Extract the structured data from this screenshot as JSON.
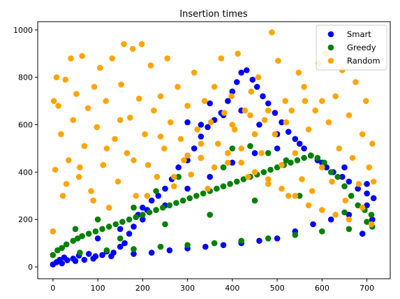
{
  "chart_data": {
    "type": "scatter",
    "title": "Insertion times",
    "xlabel": "",
    "ylabel": "",
    "xlim": [
      -34,
      752
    ],
    "ylim": [
      -50,
      1035
    ],
    "xticks": [
      0,
      100,
      200,
      300,
      400,
      500,
      600,
      700
    ],
    "yticks": [
      0,
      200,
      400,
      600,
      800,
      1000
    ],
    "grid": false,
    "legend_position": "top-right",
    "series": [
      {
        "name": "Smart",
        "color": "#0000ff",
        "points": [
          [
            0,
            10
          ],
          [
            8,
            20
          ],
          [
            15,
            30
          ],
          [
            25,
            40
          ],
          [
            32,
            28
          ],
          [
            45,
            35
          ],
          [
            58,
            48
          ],
          [
            70,
            30
          ],
          [
            80,
            55
          ],
          [
            95,
            45
          ],
          [
            110,
            50
          ],
          [
            120,
            65
          ],
          [
            135,
            60
          ],
          [
            150,
            85
          ],
          [
            160,
            100
          ],
          [
            170,
            140
          ],
          [
            180,
            170
          ],
          [
            190,
            220
          ],
          [
            200,
            250
          ],
          [
            210,
            240
          ],
          [
            220,
            280
          ],
          [
            235,
            300
          ],
          [
            250,
            330
          ],
          [
            265,
            370
          ],
          [
            280,
            420
          ],
          [
            300,
            450
          ],
          [
            315,
            500
          ],
          [
            330,
            550
          ],
          [
            345,
            590
          ],
          [
            360,
            620
          ],
          [
            375,
            650
          ],
          [
            390,
            700
          ],
          [
            400,
            740
          ],
          [
            410,
            780
          ],
          [
            420,
            820
          ],
          [
            432,
            830
          ],
          [
            445,
            790
          ],
          [
            455,
            760
          ],
          [
            468,
            720
          ],
          [
            480,
            690
          ],
          [
            495,
            650
          ],
          [
            510,
            610
          ],
          [
            525,
            570
          ],
          [
            540,
            540
          ],
          [
            560,
            500
          ],
          [
            575,
            470
          ],
          [
            590,
            450
          ],
          [
            610,
            420
          ],
          [
            625,
            400
          ],
          [
            645,
            380
          ],
          [
            660,
            360
          ],
          [
            680,
            330
          ],
          [
            700,
            310
          ],
          [
            715,
            290
          ],
          [
            20,
            15
          ],
          [
            50,
            25
          ],
          [
            90,
            35
          ],
          [
            130,
            45
          ],
          [
            180,
            55
          ],
          [
            220,
            60
          ],
          [
            260,
            70
          ],
          [
            300,
            78
          ],
          [
            340,
            85
          ],
          [
            380,
            92
          ],
          [
            420,
            100
          ],
          [
            460,
            110
          ],
          [
            500,
            120
          ],
          [
            540,
            150
          ],
          [
            580,
            180
          ],
          [
            620,
            200
          ],
          [
            660,
            220
          ],
          [
            700,
            260
          ],
          [
            712,
            200
          ],
          [
            690,
            140
          ],
          [
            100,
            120
          ],
          [
            150,
            160
          ],
          [
            200,
            200
          ],
          [
            250,
            260
          ],
          [
            300,
            330
          ],
          [
            350,
            380
          ],
          [
            400,
            440
          ],
          [
            450,
            480
          ],
          [
            500,
            500
          ],
          [
            550,
            520
          ],
          [
            600,
            440
          ],
          [
            650,
            420
          ],
          [
            700,
            350
          ],
          [
            350,
            690
          ],
          [
            380,
            640
          ],
          [
            420,
            660
          ],
          [
            460,
            600
          ],
          [
            300,
            610
          ],
          [
            330,
            600
          ],
          [
            500,
            560
          ]
        ]
      },
      {
        "name": "Greedy",
        "color": "#008000",
        "points": [
          [
            0,
            50
          ],
          [
            10,
            70
          ],
          [
            20,
            80
          ],
          [
            30,
            95
          ],
          [
            45,
            110
          ],
          [
            55,
            120
          ],
          [
            65,
            130
          ],
          [
            80,
            140
          ],
          [
            95,
            150
          ],
          [
            110,
            160
          ],
          [
            125,
            170
          ],
          [
            140,
            180
          ],
          [
            155,
            190
          ],
          [
            170,
            200
          ],
          [
            185,
            210
          ],
          [
            200,
            220
          ],
          [
            215,
            230
          ],
          [
            230,
            240
          ],
          [
            245,
            250
          ],
          [
            260,
            260
          ],
          [
            275,
            270
          ],
          [
            290,
            280
          ],
          [
            305,
            290
          ],
          [
            320,
            300
          ],
          [
            335,
            310
          ],
          [
            350,
            320
          ],
          [
            365,
            330
          ],
          [
            380,
            340
          ],
          [
            395,
            350
          ],
          [
            410,
            360
          ],
          [
            425,
            370
          ],
          [
            440,
            380
          ],
          [
            455,
            390
          ],
          [
            470,
            400
          ],
          [
            485,
            410
          ],
          [
            500,
            420
          ],
          [
            515,
            430
          ],
          [
            530,
            440
          ],
          [
            545,
            450
          ],
          [
            560,
            460
          ],
          [
            575,
            470
          ],
          [
            590,
            460
          ],
          [
            605,
            440
          ],
          [
            620,
            400
          ],
          [
            635,
            380
          ],
          [
            650,
            340
          ],
          [
            665,
            300
          ],
          [
            680,
            260
          ],
          [
            695,
            240
          ],
          [
            710,
            220
          ],
          [
            60,
            60
          ],
          [
            120,
            70
          ],
          [
            180,
            75
          ],
          [
            240,
            85
          ],
          [
            300,
            92
          ],
          [
            360,
            100
          ],
          [
            420,
            110
          ],
          [
            480,
            120
          ],
          [
            540,
            135
          ],
          [
            600,
            150
          ],
          [
            660,
            160
          ],
          [
            712,
            170
          ],
          [
            150,
            120
          ],
          [
            250,
            180
          ],
          [
            350,
            220
          ],
          [
            450,
            280
          ],
          [
            550,
            300
          ],
          [
            650,
            230
          ],
          [
            700,
            190
          ],
          [
            400,
            500
          ],
          [
            440,
            510
          ],
          [
            480,
            480
          ],
          [
            520,
            450
          ],
          [
            330,
            460
          ],
          [
            380,
            420
          ],
          [
            280,
            380
          ],
          [
            230,
            320
          ],
          [
            180,
            250
          ],
          [
            100,
            200
          ],
          [
            50,
            160
          ]
        ]
      },
      {
        "name": "Random",
        "color": "#ffa500",
        "points": [
          [
            0,
            150
          ],
          [
            2,
            700
          ],
          [
            5,
            410
          ],
          [
            8,
            800
          ],
          [
            12,
            680
          ],
          [
            18,
            560
          ],
          [
            22,
            300
          ],
          [
            28,
            790
          ],
          [
            35,
            450
          ],
          [
            40,
            880
          ],
          [
            45,
            620
          ],
          [
            52,
            730
          ],
          [
            58,
            380
          ],
          [
            65,
            890
          ],
          [
            70,
            510
          ],
          [
            78,
            670
          ],
          [
            85,
            320
          ],
          [
            92,
            760
          ],
          [
            98,
            590
          ],
          [
            105,
            840
          ],
          [
            112,
            430
          ],
          [
            118,
            700
          ],
          [
            125,
            250
          ],
          [
            132,
            880
          ],
          [
            138,
            540
          ],
          [
            145,
            360
          ],
          [
            152,
            770
          ],
          [
            158,
            940
          ],
          [
            165,
            480
          ],
          [
            172,
            630
          ],
          [
            178,
            920
          ],
          [
            185,
            300
          ],
          [
            192,
            710
          ],
          [
            198,
            940
          ],
          [
            205,
            560
          ],
          [
            212,
            430
          ],
          [
            218,
            850
          ],
          [
            225,
            660
          ],
          [
            232,
            380
          ],
          [
            240,
            720
          ],
          [
            248,
            500
          ],
          [
            255,
            880
          ],
          [
            262,
            610
          ],
          [
            270,
            340
          ],
          [
            278,
            760
          ],
          [
            285,
            540
          ],
          [
            292,
            450
          ],
          [
            300,
            680
          ],
          [
            308,
            390
          ],
          [
            315,
            820
          ],
          [
            322,
            580
          ],
          [
            330,
            460
          ],
          [
            338,
            700
          ],
          [
            345,
            330
          ],
          [
            352,
            610
          ],
          [
            360,
            760
          ],
          [
            368,
            520
          ],
          [
            375,
            880
          ],
          [
            382,
            650
          ],
          [
            390,
            440
          ],
          [
            398,
            720
          ],
          [
            405,
            580
          ],
          [
            412,
            900
          ],
          [
            420,
            500
          ],
          [
            428,
            660
          ],
          [
            435,
            380
          ],
          [
            442,
            740
          ],
          [
            450,
            560
          ],
          [
            458,
            800
          ],
          [
            465,
            480
          ],
          [
            472,
            620
          ],
          [
            480,
            350
          ],
          [
            488,
            990
          ],
          [
            495,
            560
          ],
          [
            502,
            870
          ],
          [
            510,
            430
          ],
          [
            518,
            700
          ],
          [
            525,
            300
          ],
          [
            532,
            660
          ],
          [
            540,
            480
          ],
          [
            548,
            820
          ],
          [
            555,
            370
          ],
          [
            562,
            700
          ],
          [
            570,
            580
          ],
          [
            578,
            320
          ],
          [
            585,
            660
          ],
          [
            592,
            860
          ],
          [
            600,
            420
          ],
          [
            608,
            900
          ],
          [
            615,
            610
          ],
          [
            622,
            360
          ],
          [
            630,
            720
          ],
          [
            638,
            500
          ],
          [
            645,
            830
          ],
          [
            652,
            280
          ],
          [
            660,
            640
          ],
          [
            668,
            460
          ],
          [
            675,
            780
          ],
          [
            682,
            350
          ],
          [
            690,
            560
          ],
          [
            698,
            700
          ],
          [
            705,
            420
          ],
          [
            712,
            520
          ],
          [
            715,
            360
          ],
          [
            30,
            350
          ],
          [
            60,
            420
          ],
          [
            90,
            280
          ],
          [
            120,
            500
          ],
          [
            150,
            620
          ],
          [
            180,
            450
          ],
          [
            210,
            300
          ],
          [
            240,
            550
          ],
          [
            270,
            380
          ],
          [
            300,
            470
          ],
          [
            330,
            520
          ],
          [
            360,
            420
          ],
          [
            390,
            480
          ],
          [
            420,
            440
          ],
          [
            450,
            400
          ],
          [
            480,
            370
          ],
          [
            510,
            330
          ],
          [
            540,
            300
          ],
          [
            570,
            260
          ],
          [
            600,
            240
          ],
          [
            630,
            220
          ],
          [
            660,
            200
          ],
          [
            690,
            250
          ],
          [
            710,
            180
          ],
          [
            400,
            600
          ],
          [
            440,
            640
          ],
          [
            480,
            660
          ],
          [
            520,
            610
          ],
          [
            560,
            760
          ],
          [
            600,
            700
          ]
        ]
      }
    ]
  }
}
